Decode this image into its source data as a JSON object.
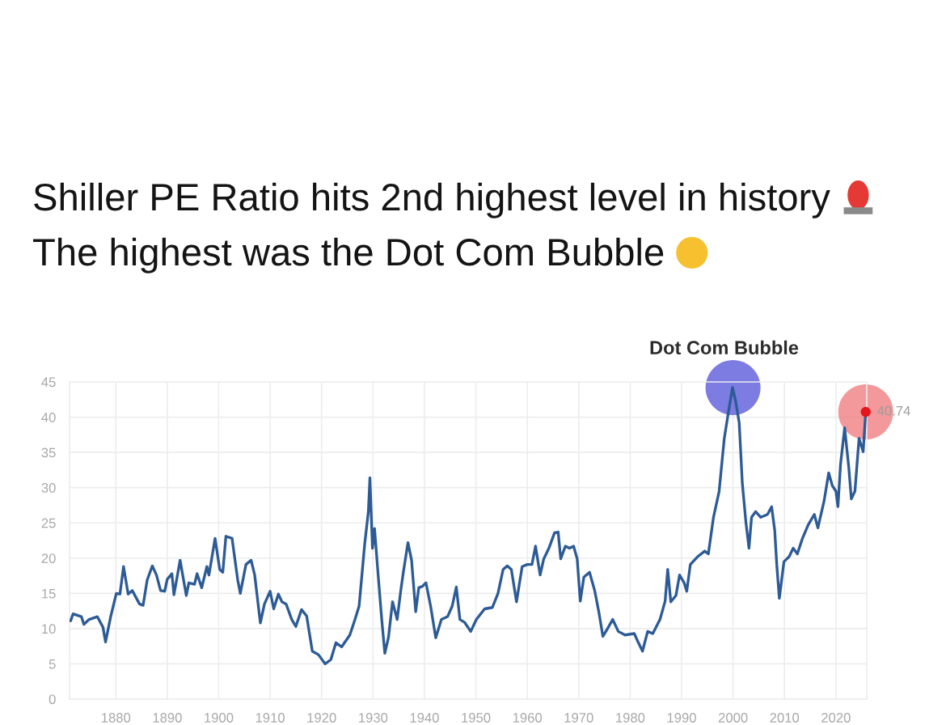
{
  "chart_data": {
    "type": "line",
    "title": "Shiller PE Ratio hits 2nd highest level in history The highest was the Dot Com Bubble",
    "x": [
      1871.2,
      1871.7,
      1873.3,
      1873.8,
      1874.8,
      1876.4,
      1877.5,
      1878.0,
      1879.0,
      1880.1,
      1880.8,
      1881.5,
      1882.4,
      1883.2,
      1884.6,
      1885.3,
      1886.1,
      1887.1,
      1887.9,
      1888.7,
      1889.5,
      1890.0,
      1890.9,
      1891.3,
      1892.5,
      1893.7,
      1894.2,
      1895.3,
      1895.8,
      1896.7,
      1897.7,
      1898.1,
      1899.3,
      1900.2,
      1900.8,
      1901.4,
      1902.6,
      1903.7,
      1904.2,
      1905.3,
      1906.3,
      1907.0,
      1908.1,
      1908.9,
      1910.0,
      1910.7,
      1911.6,
      1912.3,
      1913.1,
      1914.2,
      1915.0,
      1916.1,
      1917.1,
      1918.2,
      1919.4,
      1920.7,
      1921.8,
      1922.8,
      1923.9,
      1925.5,
      1926.5,
      1927.3,
      1928.4,
      1929.1,
      1929.4,
      1929.9,
      1930.3,
      1931.0,
      1931.7,
      1932.3,
      1933.0,
      1933.8,
      1934.7,
      1935.4,
      1935.9,
      1936.8,
      1937.5,
      1938.3,
      1938.9,
      1939.6,
      1940.3,
      1941.2,
      1942.2,
      1943.3,
      1944.5,
      1945.4,
      1946.2,
      1946.9,
      1947.8,
      1949.0,
      1950.1,
      1951.7,
      1953.2,
      1954.3,
      1955.3,
      1956.1,
      1956.9,
      1957.9,
      1959.0,
      1960.0,
      1960.9,
      1961.6,
      1962.5,
      1963.2,
      1964.2,
      1965.3,
      1966.0,
      1966.5,
      1967.4,
      1968.2,
      1969.0,
      1969.7,
      1970.3,
      1971.0,
      1972.1,
      1973.1,
      1973.9,
      1974.7,
      1975.6,
      1976.6,
      1977.7,
      1979.0,
      1980.8,
      1981.6,
      1982.4,
      1983.4,
      1984.4,
      1985.8,
      1986.8,
      1987.3,
      1987.9,
      1988.9,
      1989.6,
      1990.5,
      1991.0,
      1991.7,
      1993.1,
      1994.5,
      1995.2,
      1996.2,
      1997.3,
      1998.3,
      1999.1,
      1999.9,
      2000.5,
      2001.2,
      2001.8,
      2002.5,
      2003.1,
      2003.6,
      2004.4,
      2005.4,
      2006.7,
      2007.5,
      2008.1,
      2008.5,
      2009.0,
      2009.9,
      2010.9,
      2011.7,
      2012.5,
      2013.5,
      2014.6,
      2015.8,
      2016.5,
      2017.7,
      2018.6,
      2019.3,
      2020.0,
      2020.4,
      2020.9,
      2021.7,
      2022.5,
      2023.0,
      2023.7,
      2024.5,
      2025.3,
      2025.8
    ],
    "series": [
      {
        "color": "#2d5b96",
        "values": [
          11.1,
          12.1,
          11.7,
          10.6,
          11.3,
          11.7,
          10.2,
          8.1,
          11.7,
          15.0,
          14.9,
          18.8,
          14.9,
          15.4,
          13.5,
          13.3,
          16.9,
          18.9,
          17.6,
          15.4,
          15.3,
          17.0,
          17.8,
          14.8,
          19.7,
          14.7,
          16.5,
          16.3,
          17.8,
          15.8,
          18.8,
          17.6,
          22.8,
          18.4,
          18.0,
          23.1,
          22.8,
          16.9,
          15.0,
          19.1,
          19.7,
          17.6,
          10.8,
          13.5,
          15.3,
          12.8,
          14.9,
          13.8,
          13.5,
          11.3,
          10.3,
          12.7,
          11.8,
          6.8,
          6.3,
          5.0,
          5.6,
          8.0,
          7.4,
          9.1,
          11.3,
          13.2,
          22.1,
          26.6,
          31.4,
          21.4,
          24.2,
          17.6,
          11.3,
          6.5,
          8.7,
          13.8,
          11.3,
          15.4,
          18.0,
          22.2,
          19.7,
          12.4,
          15.8,
          16.0,
          16.5,
          13.2,
          8.7,
          11.3,
          11.7,
          13.2,
          15.9,
          11.3,
          10.9,
          9.6,
          11.3,
          12.8,
          13.0,
          15.0,
          18.4,
          18.9,
          18.4,
          13.8,
          18.8,
          19.1,
          19.1,
          21.7,
          17.6,
          19.9,
          21.4,
          23.6,
          23.7,
          19.9,
          21.7,
          21.4,
          21.7,
          19.9,
          13.9,
          17.3,
          18.0,
          15.4,
          12.4,
          8.9,
          10.0,
          11.3,
          9.6,
          9.1,
          9.3,
          8.0,
          6.8,
          9.6,
          9.3,
          11.3,
          13.9,
          18.4,
          13.8,
          14.7,
          17.6,
          16.5,
          15.3,
          19.1,
          20.2,
          21.0,
          20.6,
          25.8,
          29.5,
          37.0,
          40.7,
          44.2,
          42.3,
          39.2,
          30.7,
          25.1,
          21.4,
          25.8,
          26.6,
          25.8,
          26.2,
          27.3,
          24.0,
          19.1,
          14.3,
          19.5,
          20.2,
          21.4,
          20.6,
          22.8,
          24.7,
          26.2,
          24.3,
          28.1,
          32.1,
          30.3,
          29.5,
          27.3,
          33.3,
          38.5,
          32.9,
          28.4,
          29.5,
          37.0,
          35.1,
          40.74
        ],
        "value_labels": [
          null,
          null,
          null,
          null,
          null,
          null,
          null,
          null,
          null,
          null,
          null,
          null,
          null,
          null,
          null,
          null,
          null,
          null,
          null,
          null,
          null,
          null,
          null,
          null,
          null,
          null,
          null,
          null,
          null,
          null,
          null,
          null,
          null,
          null,
          null,
          null,
          null,
          null,
          null,
          null,
          null,
          null,
          null,
          null,
          null,
          null,
          null,
          null,
          null,
          null,
          null,
          null,
          null,
          null,
          null,
          null,
          null,
          null,
          null,
          null,
          null,
          null,
          null,
          null,
          null,
          null,
          null,
          null,
          null,
          null,
          null,
          null,
          null,
          null,
          null,
          null,
          null,
          null,
          null,
          null,
          null,
          null,
          null,
          null,
          null,
          null,
          null,
          null,
          null,
          null,
          null,
          null,
          null,
          null,
          null,
          null,
          null,
          null,
          null,
          null,
          null,
          null,
          null,
          null,
          null,
          null,
          null,
          null,
          null,
          null,
          null,
          null,
          null,
          null,
          null,
          null,
          null,
          null,
          null,
          null,
          null,
          null,
          null,
          null,
          null,
          null,
          null,
          null,
          null,
          null,
          null,
          null,
          null,
          null,
          null,
          null,
          null,
          null,
          null,
          null,
          null,
          null,
          null,
          null,
          null,
          null,
          null,
          null,
          null,
          null,
          null,
          null,
          null,
          null,
          null,
          null,
          null,
          null,
          null,
          null,
          null,
          null,
          null,
          null,
          null,
          null,
          null,
          null,
          null,
          null,
          null,
          null,
          null,
          null,
          null,
          null,
          null,
          "40.74"
        ]
      }
    ],
    "annotations": [
      {
        "text": "Dot Com Bubble",
        "x": 2000,
        "y": 44.2
      }
    ],
    "xlim": [
      1871,
      2026
    ],
    "xticks": [
      1880,
      1890,
      1900,
      1910,
      1920,
      1930,
      1940,
      1950,
      1960,
      1970,
      1980,
      1990,
      2000,
      2010,
      2020
    ],
    "ylim": [
      0,
      45
    ],
    "yticks": [
      0,
      5,
      10,
      15,
      20,
      25,
      30,
      35,
      40,
      45
    ],
    "grid": true
  }
}
